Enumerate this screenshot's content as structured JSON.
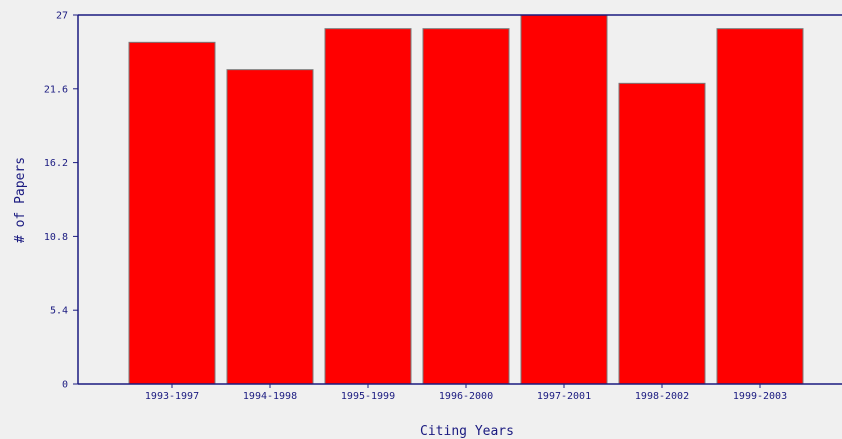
{
  "chart_data": {
    "type": "bar",
    "title": "",
    "xlabel": "Citing Years",
    "ylabel": "# of Papers",
    "categories": [
      "1993-1997",
      "1994-1998",
      "1995-1999",
      "1996-2000",
      "1997-2001",
      "1998-2002",
      "1999-2003"
    ],
    "values": [
      25,
      23,
      26,
      26,
      27,
      22,
      26
    ],
    "ylim": [
      0,
      27
    ],
    "yticks": [
      "0",
      "5.4",
      "10.8",
      "16.2",
      "21.6",
      "27"
    ],
    "grid": false,
    "colors": {
      "bar_fill": "#ff0000",
      "bar_stroke": "#7a7a7a",
      "axis": "#1a1a80",
      "background": "#f0f0f0"
    }
  }
}
